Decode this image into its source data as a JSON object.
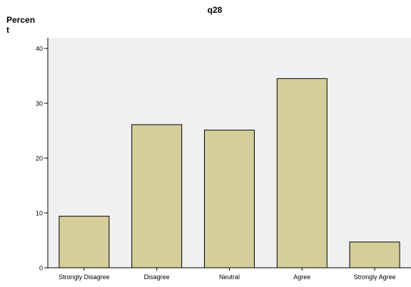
{
  "chart_data": {
    "type": "bar",
    "title": "q28",
    "ylabel_lines": [
      "Percen",
      "t"
    ],
    "xlabel": "",
    "categories": [
      "Strongly Disagree",
      "Disagree",
      "Neutral",
      "Agree",
      "Strongly Agree"
    ],
    "values": [
      9.4,
      26.1,
      25.1,
      34.5,
      4.7
    ],
    "yticks": [
      0,
      10,
      20,
      30,
      40
    ],
    "ylim": [
      0,
      40
    ],
    "grid": false,
    "colors": {
      "plot_background": "#f0f0f0",
      "bar_fill": "#d4cf9a",
      "bar_stroke": "#000000",
      "axis": "#000000",
      "page_background": "#ffffff"
    }
  }
}
